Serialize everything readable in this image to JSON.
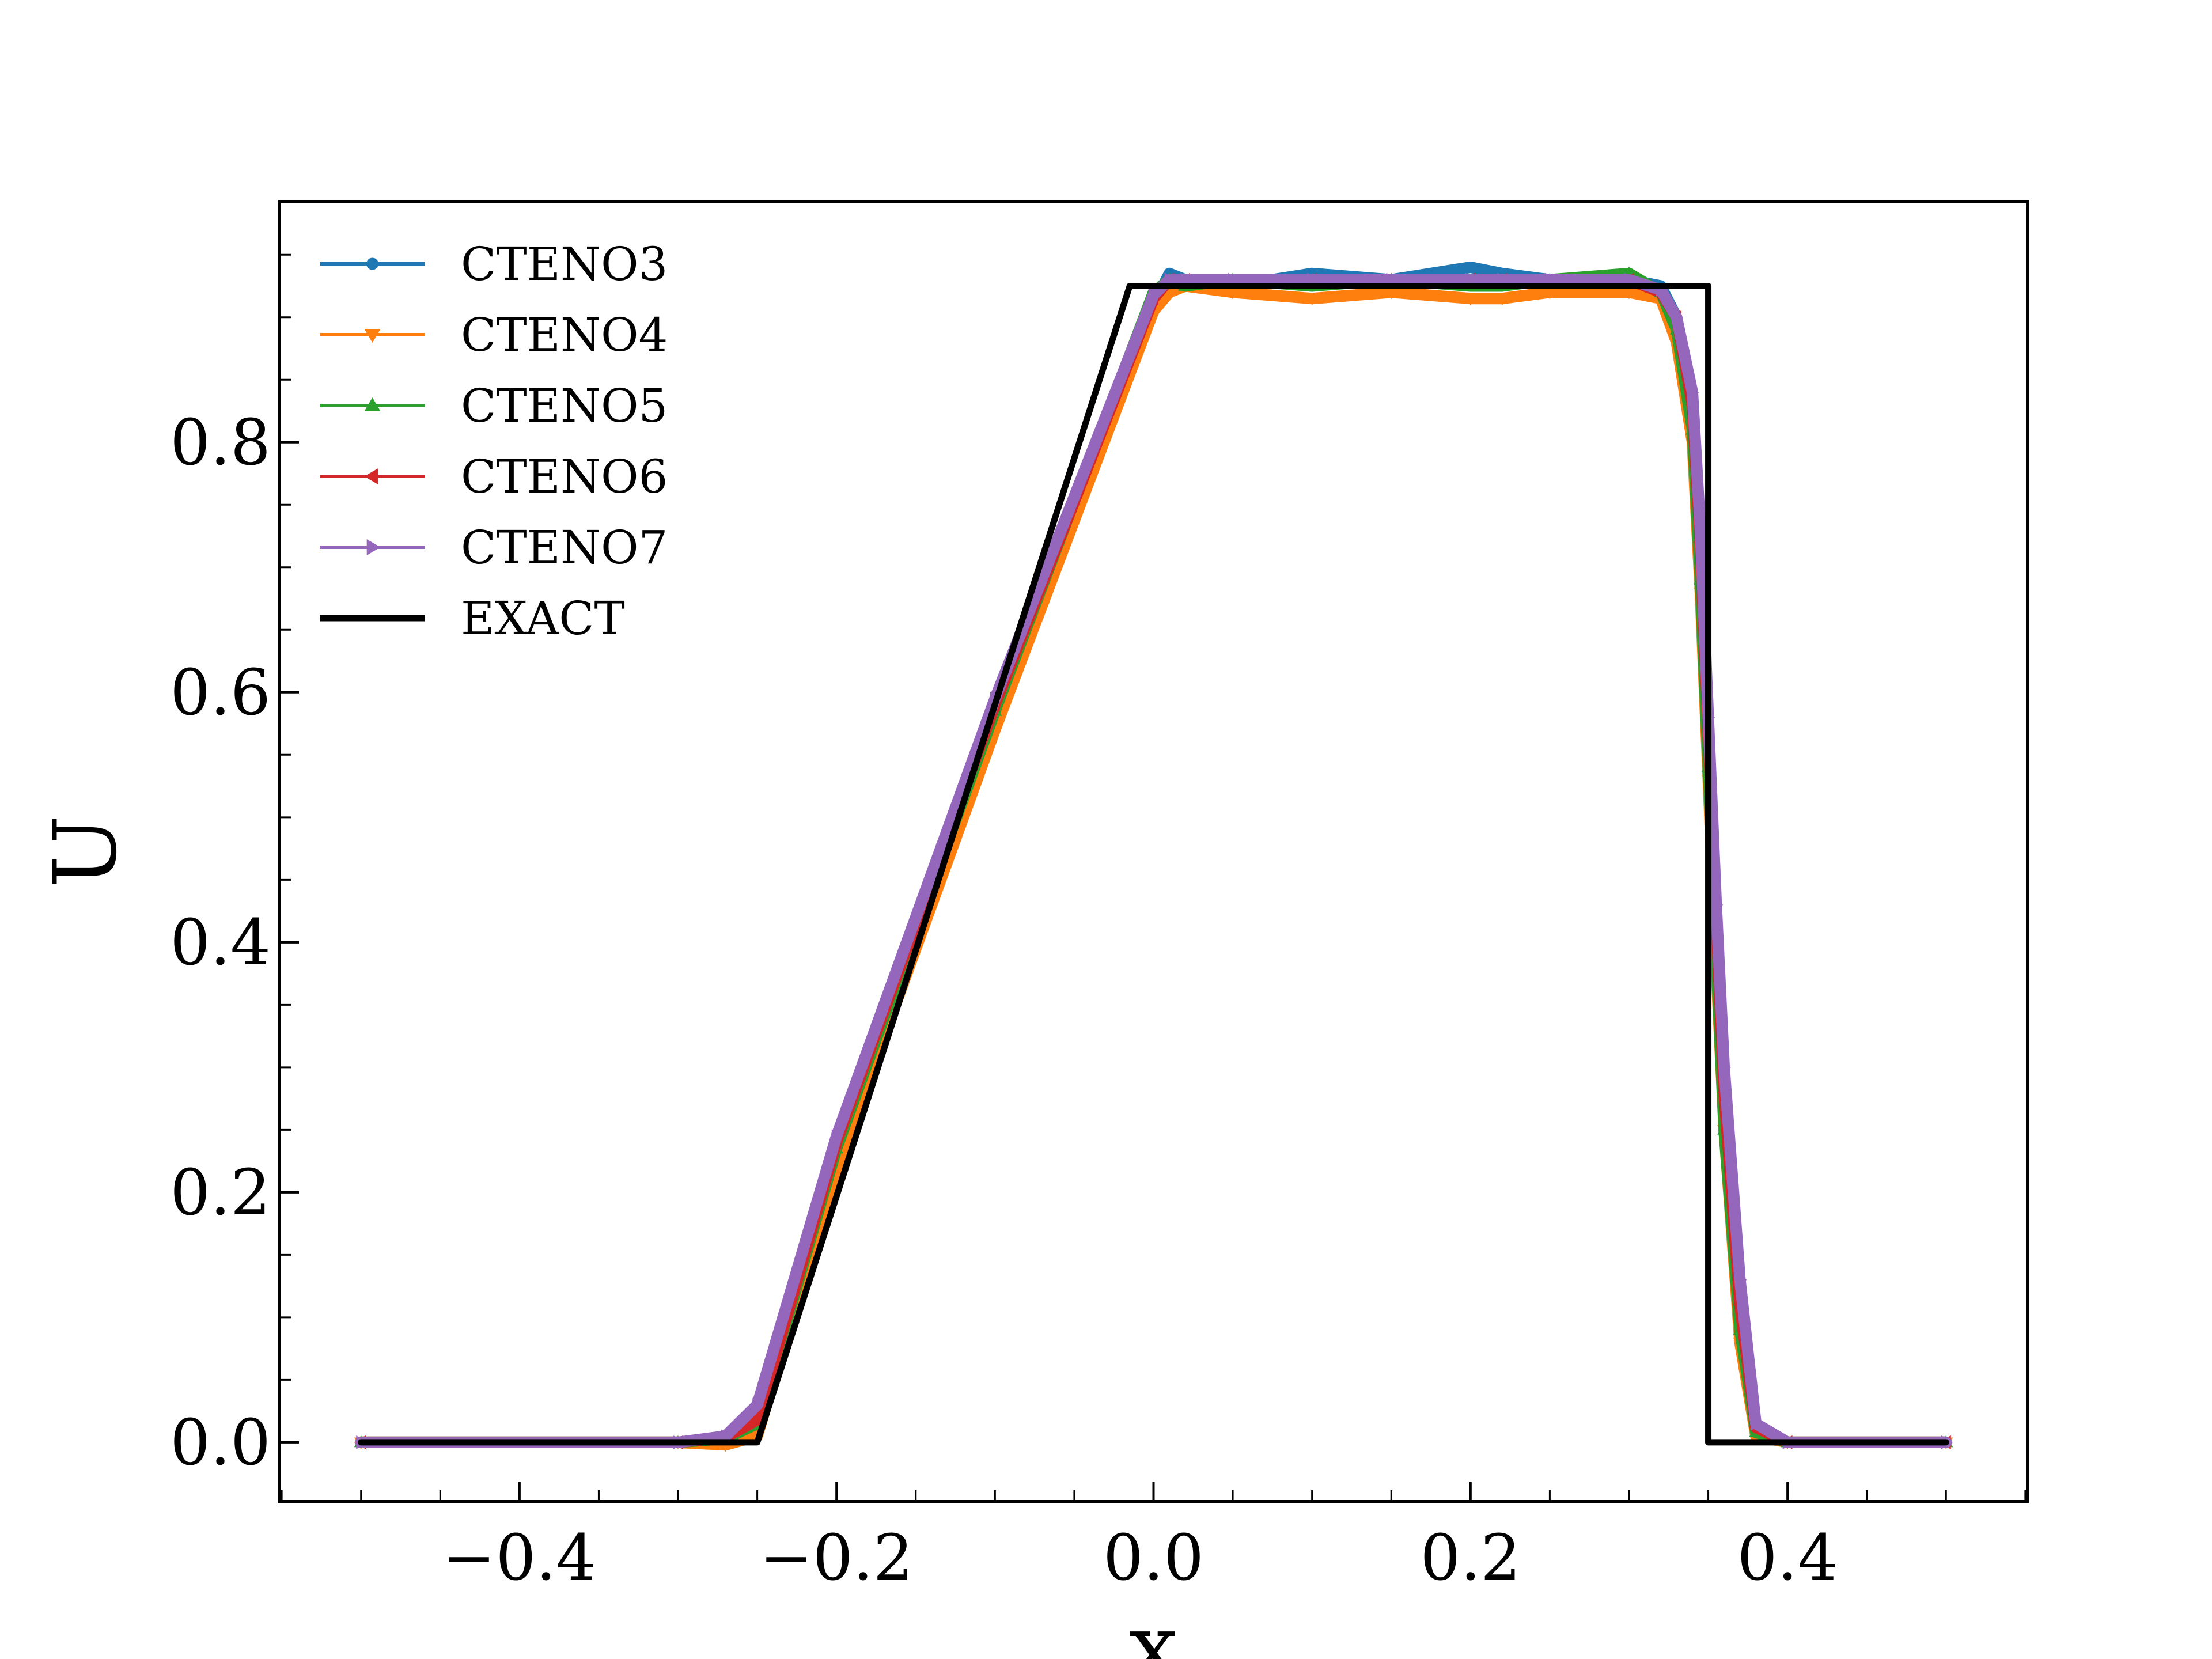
{
  "chart_data": {
    "type": "line",
    "title": "",
    "xlabel": "x",
    "ylabel": "U",
    "xlim": [
      -0.5515,
      0.5515
    ],
    "ylim": [
      -0.0475,
      0.9925
    ],
    "x_ticks": [
      -0.4,
      -0.2,
      0.0,
      0.2,
      0.4
    ],
    "x_tick_labels": [
      "−0.4",
      "−0.2",
      "0.0",
      "0.2",
      "0.4"
    ],
    "y_ticks": [
      0.0,
      0.2,
      0.4,
      0.6,
      0.8
    ],
    "y_tick_labels": [
      "0.0",
      "0.2",
      "0.4",
      "0.6",
      "0.8"
    ],
    "grid": false,
    "legend_position": "top-left",
    "series": [
      {
        "name": "CTENO3",
        "color": "#1f77b4",
        "marker": "circle",
        "x": [
          -0.5,
          -0.3,
          -0.27,
          -0.25,
          -0.2,
          -0.1,
          0.0,
          0.01,
          0.02,
          0.05,
          0.1,
          0.15,
          0.2,
          0.22,
          0.25,
          0.3,
          0.32,
          0.33,
          0.34,
          0.345,
          0.35,
          0.355,
          0.36,
          0.37,
          0.38,
          0.4,
          0.5
        ],
        "y": [
          0.0,
          0.0,
          0.002,
          0.01,
          0.23,
          0.58,
          0.91,
          0.935,
          0.93,
          0.925,
          0.935,
          0.93,
          0.94,
          0.935,
          0.93,
          0.93,
          0.925,
          0.9,
          0.82,
          0.7,
          0.55,
          0.4,
          0.26,
          0.1,
          0.01,
          0.0,
          0.0
        ]
      },
      {
        "name": "CTENO4",
        "color": "#ff7f0e",
        "marker": "triangle-down",
        "x": [
          -0.5,
          -0.3,
          -0.27,
          -0.25,
          -0.2,
          -0.1,
          0.0,
          0.01,
          0.02,
          0.05,
          0.1,
          0.15,
          0.2,
          0.22,
          0.25,
          0.3,
          0.32,
          0.33,
          0.34,
          0.345,
          0.35,
          0.355,
          0.36,
          0.37,
          0.38,
          0.4,
          0.5
        ],
        "y": [
          0.0,
          0.0,
          -0.002,
          0.005,
          0.22,
          0.57,
          0.905,
          0.92,
          0.925,
          0.92,
          0.915,
          0.92,
          0.915,
          0.915,
          0.92,
          0.92,
          0.915,
          0.88,
          0.8,
          0.68,
          0.53,
          0.38,
          0.25,
          0.08,
          0.005,
          0.0,
          0.0
        ]
      },
      {
        "name": "CTENO5",
        "color": "#2ca02c",
        "marker": "triangle-up",
        "x": [
          -0.5,
          -0.3,
          -0.27,
          -0.25,
          -0.2,
          -0.1,
          0.0,
          0.01,
          0.02,
          0.05,
          0.1,
          0.15,
          0.2,
          0.22,
          0.25,
          0.3,
          0.32,
          0.33,
          0.34,
          0.345,
          0.35,
          0.355,
          0.36,
          0.37,
          0.38,
          0.4,
          0.5
        ],
        "y": [
          0.0,
          0.0,
          0.003,
          0.015,
          0.235,
          0.585,
          0.92,
          0.93,
          0.925,
          0.93,
          0.925,
          0.93,
          0.925,
          0.925,
          0.93,
          0.935,
          0.92,
          0.89,
          0.81,
          0.69,
          0.54,
          0.39,
          0.25,
          0.09,
          0.008,
          0.0,
          0.0
        ]
      },
      {
        "name": "CTENO6",
        "color": "#d62728",
        "marker": "triangle-left",
        "x": [
          -0.5,
          -0.3,
          -0.27,
          -0.25,
          -0.2,
          -0.1,
          0.0,
          0.01,
          0.02,
          0.05,
          0.1,
          0.15,
          0.2,
          0.22,
          0.25,
          0.3,
          0.32,
          0.33,
          0.34,
          0.345,
          0.35,
          0.355,
          0.36,
          0.37,
          0.38,
          0.4,
          0.5
        ],
        "y": [
          0.0,
          0.0,
          0.004,
          0.018,
          0.24,
          0.59,
          0.915,
          0.93,
          0.93,
          0.928,
          0.93,
          0.928,
          0.93,
          0.93,
          0.928,
          0.93,
          0.92,
          0.9,
          0.83,
          0.72,
          0.57,
          0.42,
          0.28,
          0.11,
          0.012,
          0.0,
          0.0
        ]
      },
      {
        "name": "CTENO7",
        "color": "#9467bd",
        "marker": "triangle-right",
        "x": [
          -0.5,
          -0.3,
          -0.27,
          -0.25,
          -0.2,
          -0.1,
          0.0,
          0.01,
          0.02,
          0.05,
          0.1,
          0.15,
          0.2,
          0.22,
          0.25,
          0.3,
          0.32,
          0.33,
          0.34,
          0.345,
          0.35,
          0.355,
          0.36,
          0.37,
          0.38,
          0.4,
          0.5
        ],
        "y": [
          0.0,
          0.0,
          0.005,
          0.03,
          0.245,
          0.595,
          0.918,
          0.93,
          0.93,
          0.93,
          0.93,
          0.93,
          0.93,
          0.93,
          0.93,
          0.93,
          0.922,
          0.9,
          0.84,
          0.73,
          0.58,
          0.43,
          0.3,
          0.13,
          0.015,
          0.0,
          0.0
        ]
      },
      {
        "name": "EXACT",
        "color": "#000000",
        "marker": "none",
        "x": [
          -0.5,
          -0.25,
          -0.015,
          0.35,
          0.35,
          0.5
        ],
        "y": [
          0.0,
          0.0,
          0.925,
          0.925,
          0.0,
          0.0
        ]
      }
    ]
  }
}
